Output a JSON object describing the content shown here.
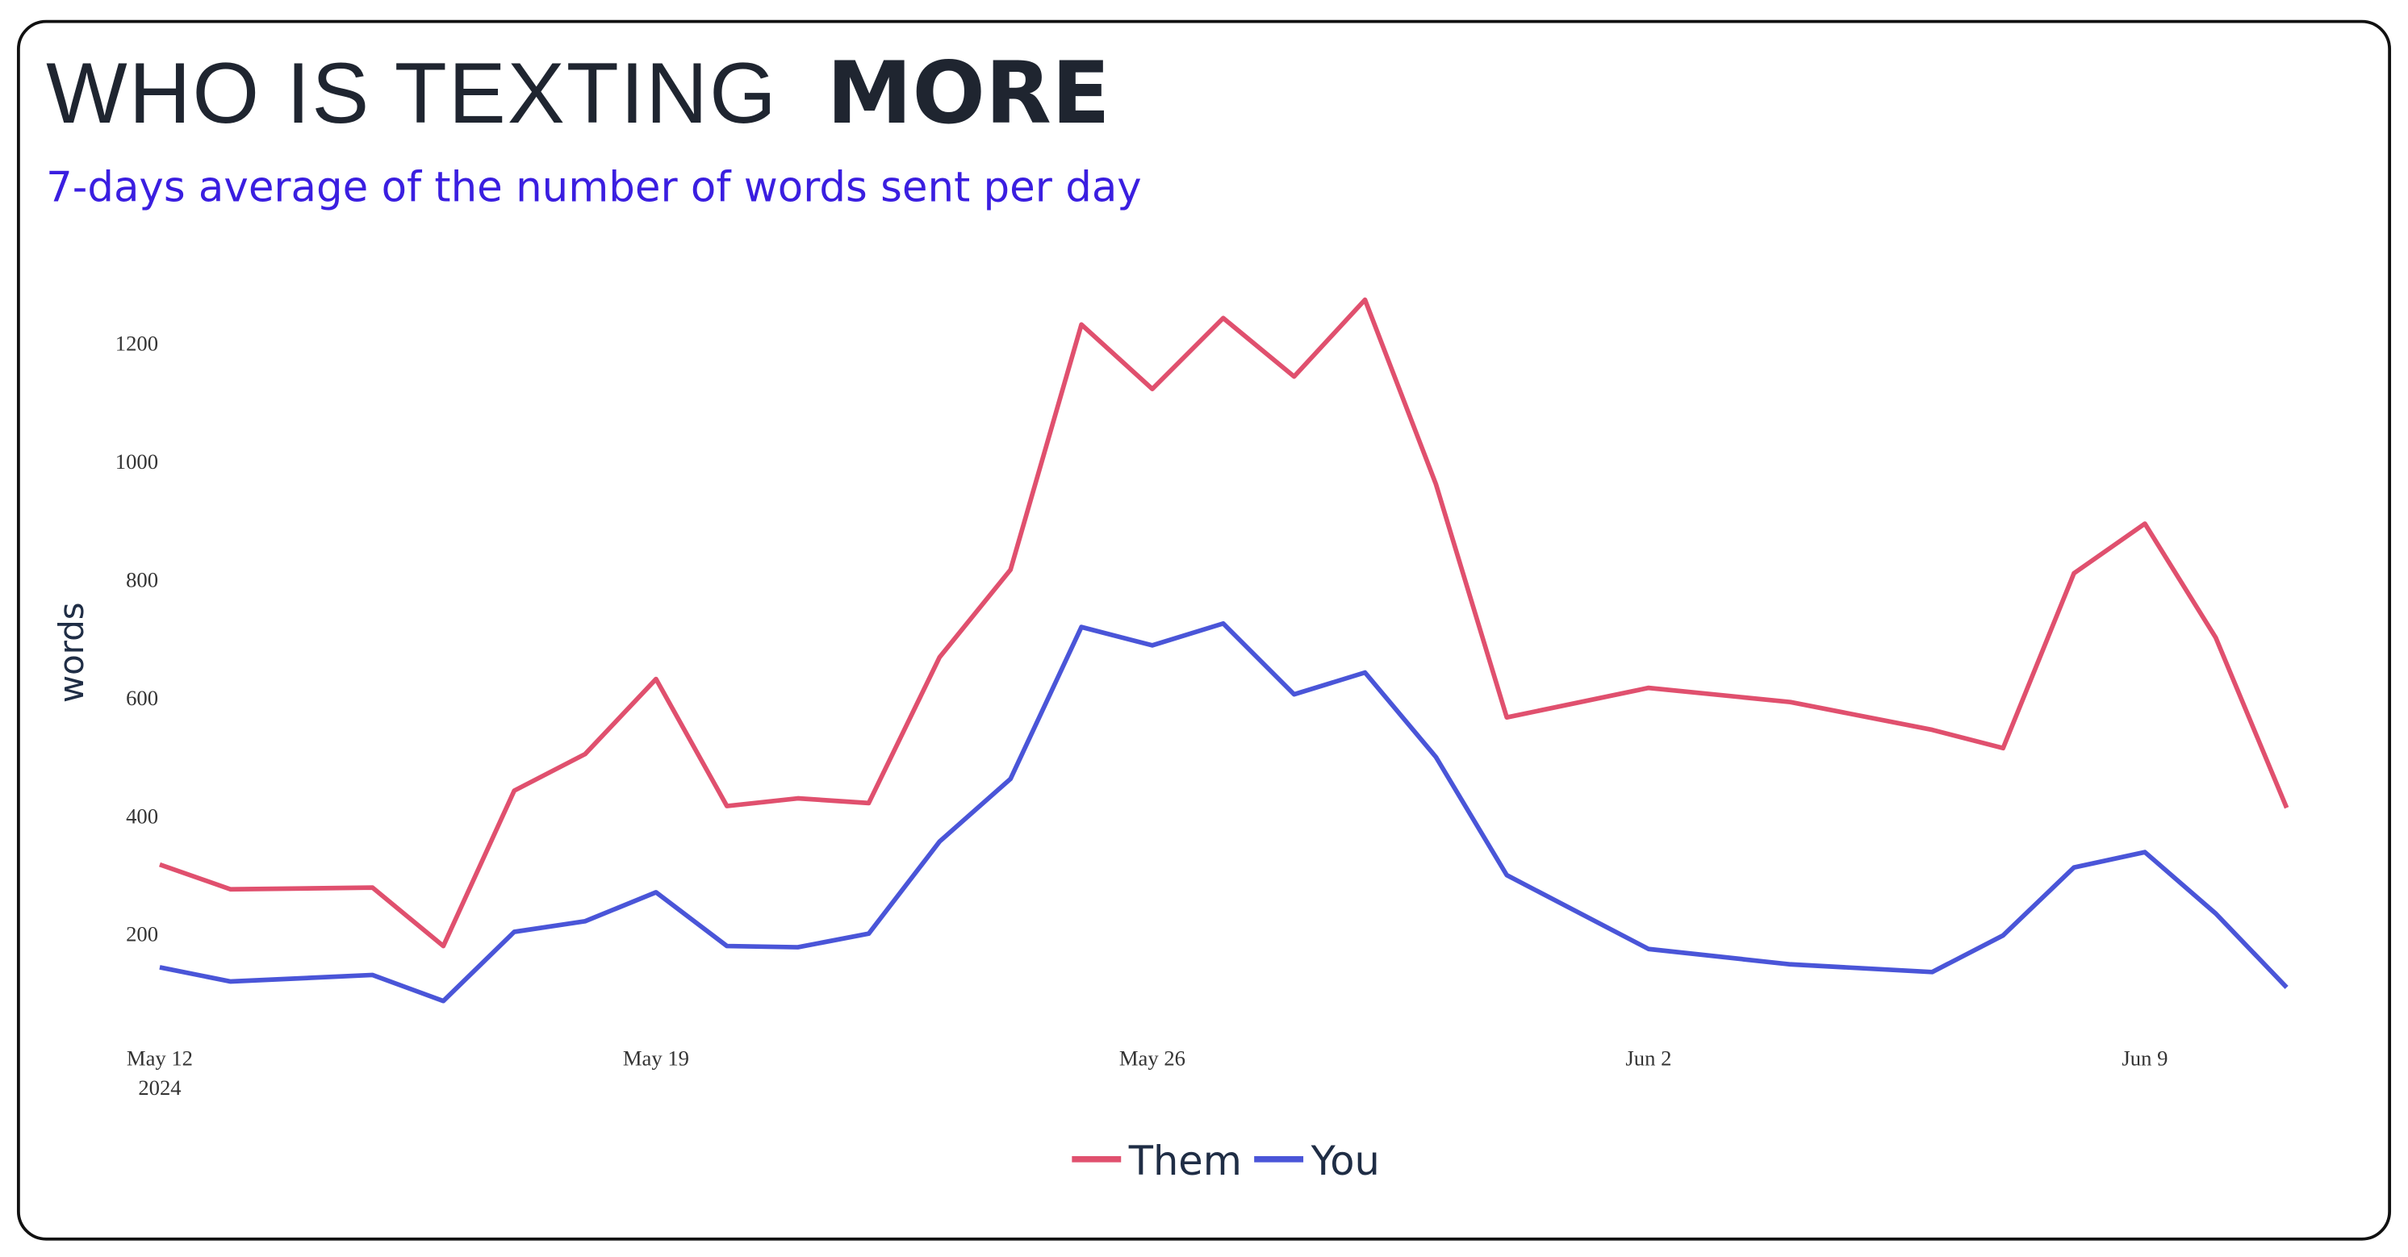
{
  "chart_data": {
    "type": "line",
    "title_light": "WHO IS TEXTING",
    "title_bold": "MORE",
    "subtitle": "7-days average of the number of words sent per day",
    "y_label": "words",
    "x": [
      "2024-05-12",
      "2024-05-13",
      "2024-05-15",
      "2024-05-16",
      "2024-05-17",
      "2024-05-18",
      "2024-05-19",
      "2024-05-20",
      "2024-05-21",
      "2024-05-22",
      "2024-05-23",
      "2024-05-24",
      "2024-05-25",
      "2024-05-26",
      "2024-05-27",
      "2024-05-28",
      "2024-05-29",
      "2024-05-30",
      "2024-05-31",
      "2024-06-02",
      "2024-06-04",
      "2024-06-06",
      "2024-06-07",
      "2024-06-08",
      "2024-06-09",
      "2024-06-10",
      "2024-06-11"
    ],
    "series": [
      {
        "name": "Them",
        "color": "#e0506e",
        "values": [
          317,
          275,
          278,
          179,
          442,
          504,
          631,
          416,
          429,
          421,
          668,
          816,
          1231,
          1122,
          1242,
          1143,
          1273,
          961,
          566,
          616,
          592,
          545,
          514,
          810,
          894,
          701,
          413
        ]
      },
      {
        "name": "You",
        "color": "#4a55d8",
        "values": [
          143,
          119,
          130,
          86,
          203,
          221,
          270,
          179,
          177,
          200,
          356,
          462,
          719,
          688,
          725,
          605,
          642,
          499,
          299,
          174,
          148,
          135,
          197,
          312,
          338,
          234,
          109
        ]
      }
    ],
    "xlim": [
      "2024-05-12",
      "2024-06-11"
    ],
    "xticks": [
      {
        "value": "2024-05-12",
        "label": "May 12\n2024"
      },
      {
        "value": "2024-05-19",
        "label": "May 19"
      },
      {
        "value": "2024-05-26",
        "label": "May 26"
      },
      {
        "value": "2024-06-02",
        "label": "Jun 2"
      },
      {
        "value": "2024-06-09",
        "label": "Jun 9"
      }
    ],
    "ylim": [
      30,
      1310
    ],
    "yticks": [
      200,
      400,
      600,
      800,
      1000,
      1200
    ],
    "grid": false,
    "legend": "bottom"
  }
}
